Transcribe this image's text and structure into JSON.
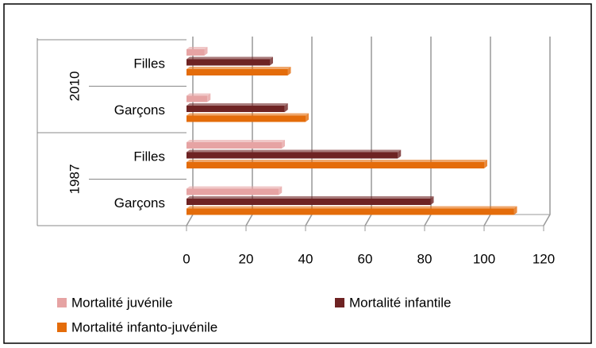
{
  "chart_data": {
    "type": "bar",
    "orientation": "horizontal",
    "groups": [
      {
        "name": "1987",
        "categories": [
          "Garçons",
          "Filles"
        ]
      },
      {
        "name": "2010",
        "categories": [
          "Garçons",
          "Filles"
        ]
      }
    ],
    "series": [
      {
        "name": "Mortalité juvénile",
        "color": "#e6a3a3",
        "values": [
          31,
          32,
          7,
          6
        ]
      },
      {
        "name": "Mortalité infantile",
        "color": "#6e2323",
        "values": [
          82,
          71,
          33,
          28
        ]
      },
      {
        "name": "Mortalité infanto-juvénile",
        "color": "#e46c0a",
        "values": [
          110,
          100,
          40,
          34
        ]
      }
    ],
    "xlim": [
      0,
      120
    ],
    "xticks": [
      0,
      20,
      40,
      60,
      80,
      100,
      120
    ],
    "grid": true,
    "legend": "bottom"
  }
}
